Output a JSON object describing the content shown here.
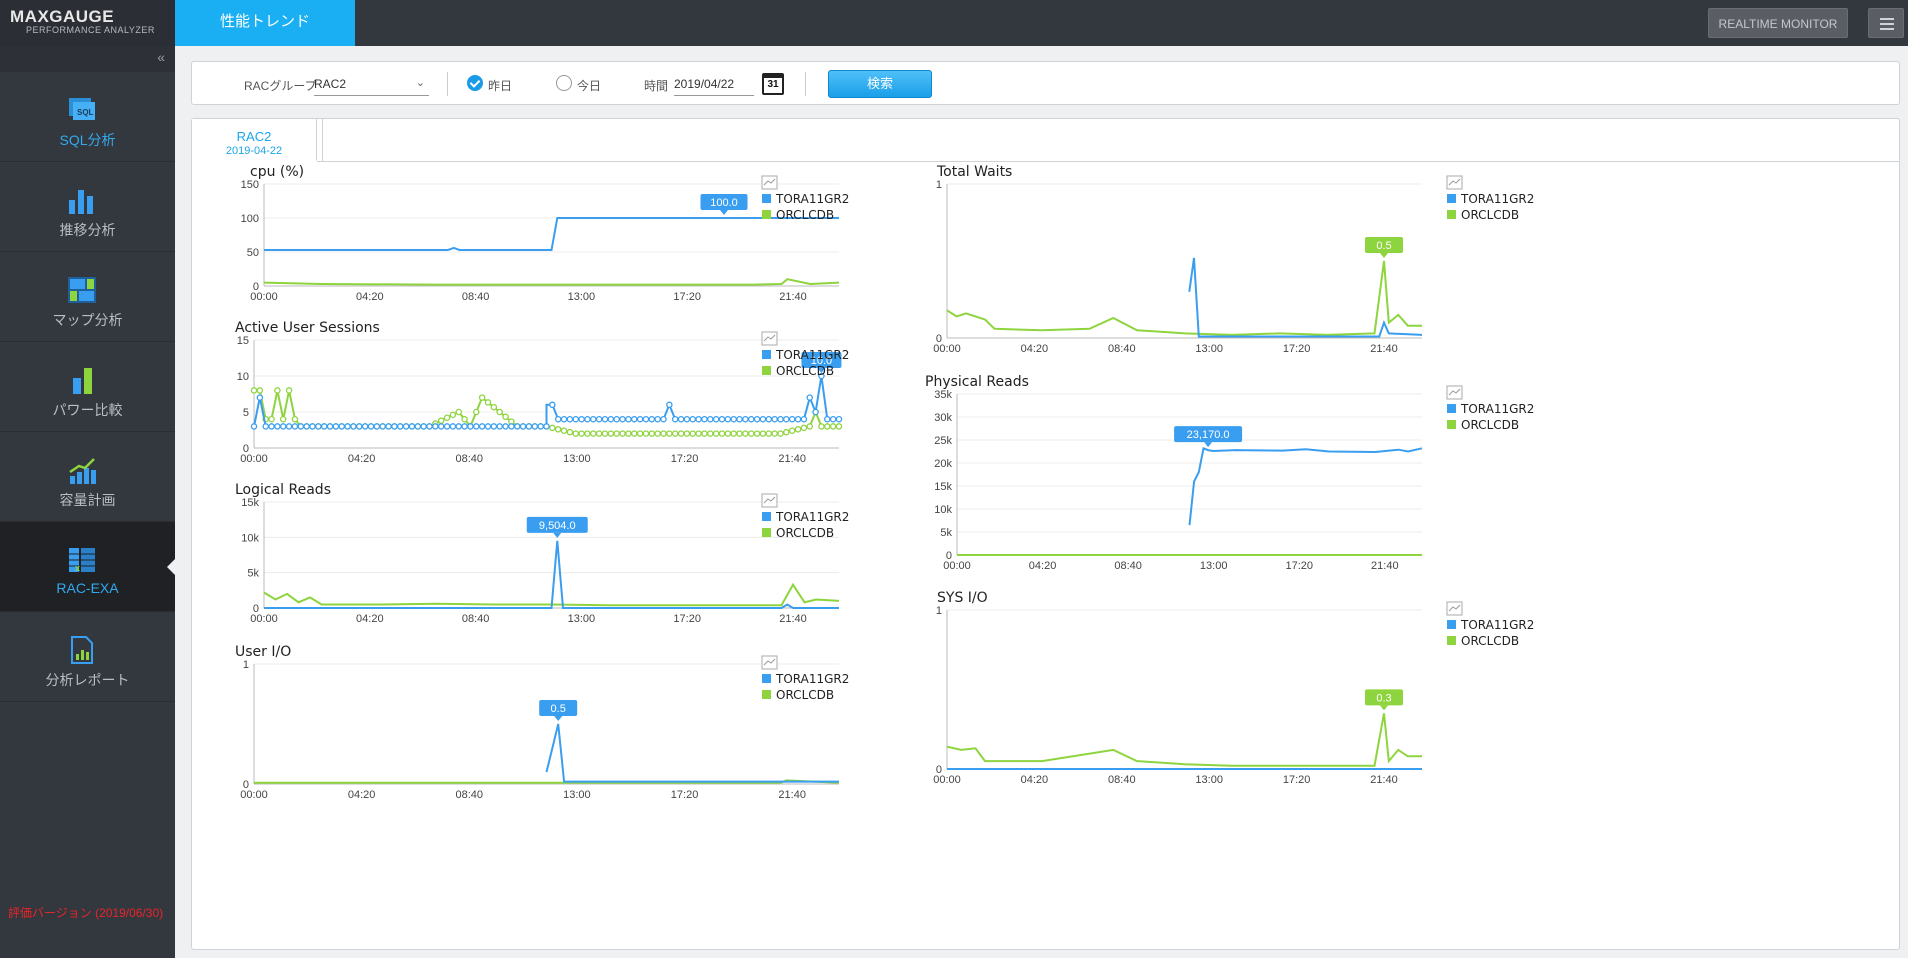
{
  "app": {
    "brand": "MAXGAUGE",
    "brand_sub": "PERFORMANCE ANALYZER",
    "collapse_icon": "«",
    "version_note": "評価バージョン (2019/06/30)"
  },
  "sidebar": {
    "items": [
      {
        "label": "SQL分析",
        "icon": "sql-analysis-icon",
        "active": false
      },
      {
        "label": "推移分析",
        "icon": "trend-analysis-icon",
        "active": false
      },
      {
        "label": "マップ分析",
        "icon": "map-analysis-icon",
        "active": false
      },
      {
        "label": "パワー比較",
        "icon": "power-compare-icon",
        "active": false
      },
      {
        "label": "容量計画",
        "icon": "capacity-plan-icon",
        "active": false
      },
      {
        "label": "RAC-EXA",
        "icon": "rac-exa-icon",
        "active": true
      },
      {
        "label": "分析レポート",
        "icon": "analysis-report-icon",
        "active": false
      }
    ]
  },
  "topbar": {
    "tab": "性能トレンド",
    "realtime_label": "REALTIME MONITOR"
  },
  "filter": {
    "rac_group_label": "RACグループ",
    "rac_group_value": "RAC2",
    "radio_yesterday": "昨日",
    "radio_today": "今日",
    "time_label": "時間",
    "date_value": "2019/04/22",
    "calendar_day": "31",
    "search_label": "検索"
  },
  "panel": {
    "tab_title": "RAC2",
    "tab_date": "2019-04-22"
  },
  "colors": {
    "blue": "#3a9ef0",
    "green": "#8ed43e",
    "accent": "#1aaef2"
  },
  "legend": [
    "TORA11GR2",
    "ORCLCDB"
  ],
  "x_ticks": [
    "00:00",
    "04:20",
    "08:40",
    "13:00",
    "17:20",
    "21:40"
  ],
  "chart_data": [
    {
      "type": "line",
      "title": "cpu (%)",
      "y_ticks": [
        "0",
        "50",
        "100",
        "150"
      ],
      "ylim": [
        0,
        150
      ],
      "callout": {
        "label": "100.0",
        "series": "TORA11GR2",
        "x": 0.8
      },
      "series": [
        {
          "name": "TORA11GR2",
          "x": [
            0,
            0.32,
            0.33,
            0.34,
            0.5,
            0.5,
            0.51,
            0.52,
            1
          ],
          "values": [
            53,
            53,
            56,
            53,
            53,
            53,
            100,
            100,
            100
          ]
        },
        {
          "name": "ORCLCDB",
          "x": [
            0,
            0.1,
            0.3,
            0.5,
            0.7,
            0.85,
            0.9,
            0.91,
            0.95,
            1
          ],
          "values": [
            5,
            3,
            2,
            2,
            2,
            2,
            3,
            10,
            3,
            5
          ]
        }
      ],
      "markers": false
    },
    {
      "type": "line",
      "title": "Active User Sessions",
      "y_ticks": [
        "0",
        "5",
        "10",
        "15"
      ],
      "ylim": [
        0,
        15
      ],
      "callout": {
        "label": "10.0",
        "series": "TORA11GR2",
        "x": 0.97
      },
      "series": [
        {
          "name": "TORA11GR2",
          "x": [
            0,
            0.01,
            0.02,
            0.03,
            0.2,
            0.5,
            0.5,
            0.51,
            0.52,
            0.53,
            0.55,
            0.7,
            0.71,
            0.72,
            0.94,
            0.95,
            0.96,
            0.97,
            0.98,
            1
          ],
          "values": [
            3,
            7,
            3,
            3,
            3,
            3,
            6,
            6,
            4,
            4,
            4,
            4,
            6,
            4,
            4,
            7,
            5,
            10,
            4,
            4
          ]
        },
        {
          "name": "ORCLCDB",
          "x": [
            0,
            0.01,
            0.02,
            0.03,
            0.04,
            0.05,
            0.06,
            0.07,
            0.08,
            0.09,
            0.1,
            0.2,
            0.3,
            0.35,
            0.37,
            0.39,
            0.45,
            0.5,
            0.55,
            0.6,
            0.65,
            0.7,
            0.75,
            0.8,
            0.85,
            0.9,
            0.95,
            0.96,
            0.97,
            0.98,
            1
          ],
          "values": [
            8,
            8,
            4,
            4,
            8,
            4,
            8,
            4,
            3,
            3,
            3,
            3,
            3,
            5,
            3,
            7,
            3,
            3,
            2,
            2,
            2,
            2,
            2,
            2,
            2,
            2,
            3,
            5,
            3,
            3,
            3
          ]
        }
      ],
      "markers": true
    },
    {
      "type": "line",
      "title": "Logical Reads",
      "y_ticks": [
        "0",
        "5k",
        "10k",
        "15k"
      ],
      "ylim": [
        0,
        15000
      ],
      "callout": {
        "label": "9,504.0",
        "series": "TORA11GR2",
        "x": 0.51
      },
      "series": [
        {
          "name": "TORA11GR2",
          "x": [
            0,
            0.49,
            0.5,
            0.51,
            0.52,
            0.53,
            0.9,
            0.91,
            0.92,
            1
          ],
          "values": [
            0,
            0,
            0,
            9504,
            0,
            0,
            0,
            500,
            0,
            0
          ]
        },
        {
          "name": "ORCLCDB",
          "x": [
            0,
            0.02,
            0.04,
            0.06,
            0.08,
            0.1,
            0.2,
            0.3,
            0.4,
            0.5,
            0.6,
            0.7,
            0.8,
            0.9,
            0.92,
            0.94,
            0.96,
            1
          ],
          "values": [
            2200,
            1200,
            2000,
            800,
            1500,
            500,
            500,
            600,
            500,
            500,
            400,
            400,
            400,
            400,
            3300,
            800,
            1200,
            1000
          ]
        }
      ],
      "markers": false
    },
    {
      "type": "line",
      "title": "User I/O",
      "y_ticks": [
        "0",
        "1"
      ],
      "ylim": [
        0,
        1
      ],
      "callout": {
        "label": "0.5",
        "series": "TORA11GR2",
        "x": 0.52
      },
      "series": [
        {
          "name": "TORA11GR2",
          "x": [
            0.5,
            0.51,
            0.52,
            0.53,
            1
          ],
          "values": [
            0.1,
            0.3,
            0.5,
            0.02,
            0.02
          ]
        },
        {
          "name": "ORCLCDB",
          "x": [
            0,
            0.2,
            0.45,
            0.5,
            0.9,
            0.91,
            1
          ],
          "values": [
            0.01,
            0.01,
            0.01,
            0.01,
            0.01,
            0.03,
            0.01
          ]
        }
      ],
      "markers": false
    },
    {
      "type": "line",
      "title": "Total Waits",
      "y_ticks": [
        "0",
        "1"
      ],
      "ylim": [
        0,
        1
      ],
      "callout": {
        "label": "0.5",
        "series": "ORCLCDB",
        "x": 0.92
      },
      "series": [
        {
          "name": "TORA11GR2",
          "x": [
            0.51,
            0.52,
            0.53,
            0.91,
            0.92,
            0.93,
            1
          ],
          "values": [
            0.3,
            0.52,
            0.01,
            0.01,
            0.1,
            0.03,
            0.02
          ]
        },
        {
          "name": "ORCLCDB",
          "x": [
            0,
            0.02,
            0.04,
            0.06,
            0.08,
            0.1,
            0.2,
            0.3,
            0.35,
            0.4,
            0.45,
            0.5,
            0.6,
            0.7,
            0.8,
            0.9,
            0.92,
            0.93,
            0.95,
            0.97,
            1
          ],
          "values": [
            0.18,
            0.14,
            0.16,
            0.14,
            0.12,
            0.06,
            0.05,
            0.06,
            0.13,
            0.05,
            0.04,
            0.03,
            0.02,
            0.03,
            0.02,
            0.03,
            0.5,
            0.1,
            0.15,
            0.08,
            0.08
          ]
        }
      ],
      "markers": false
    },
    {
      "type": "line",
      "title": "Physical Reads",
      "y_ticks": [
        "0",
        "5k",
        "10k",
        "15k",
        "20k",
        "25k",
        "30k",
        "35k"
      ],
      "ylim": [
        0,
        35000
      ],
      "callout": {
        "label": "23,170.0",
        "series": "TORA11GR2",
        "x": 0.54
      },
      "series": [
        {
          "name": "TORA11GR2",
          "x": [
            0.5,
            0.51,
            0.52,
            0.53,
            0.54,
            0.55,
            0.6,
            0.7,
            0.75,
            0.8,
            0.9,
            0.95,
            0.97,
            1
          ],
          "values": [
            6500,
            16000,
            18000,
            23170,
            22800,
            22600,
            22800,
            22700,
            23000,
            22500,
            22400,
            22900,
            22500,
            23200
          ]
        },
        {
          "name": "ORCLCDB",
          "x": [
            0,
            0.5,
            1
          ],
          "values": [
            0,
            0,
            0
          ]
        }
      ],
      "markers": false
    },
    {
      "type": "line",
      "title": "SYS I/O",
      "y_ticks": [
        "0",
        "1"
      ],
      "ylim": [
        0,
        1
      ],
      "callout": {
        "label": "0.3",
        "series": "ORCLCDB",
        "x": 0.92
      },
      "series": [
        {
          "name": "TORA11GR2",
          "x": [
            0,
            1
          ],
          "values": [
            0,
            0
          ]
        },
        {
          "name": "ORCLCDB",
          "x": [
            0,
            0.03,
            0.06,
            0.08,
            0.1,
            0.2,
            0.35,
            0.4,
            0.45,
            0.5,
            0.6,
            0.7,
            0.8,
            0.9,
            0.92,
            0.93,
            0.95,
            0.97,
            1
          ],
          "values": [
            0.14,
            0.12,
            0.13,
            0.05,
            0.05,
            0.05,
            0.12,
            0.05,
            0.04,
            0.03,
            0.02,
            0.02,
            0.02,
            0.02,
            0.35,
            0.05,
            0.12,
            0.08,
            0.08
          ]
        }
      ],
      "markers": false
    }
  ]
}
